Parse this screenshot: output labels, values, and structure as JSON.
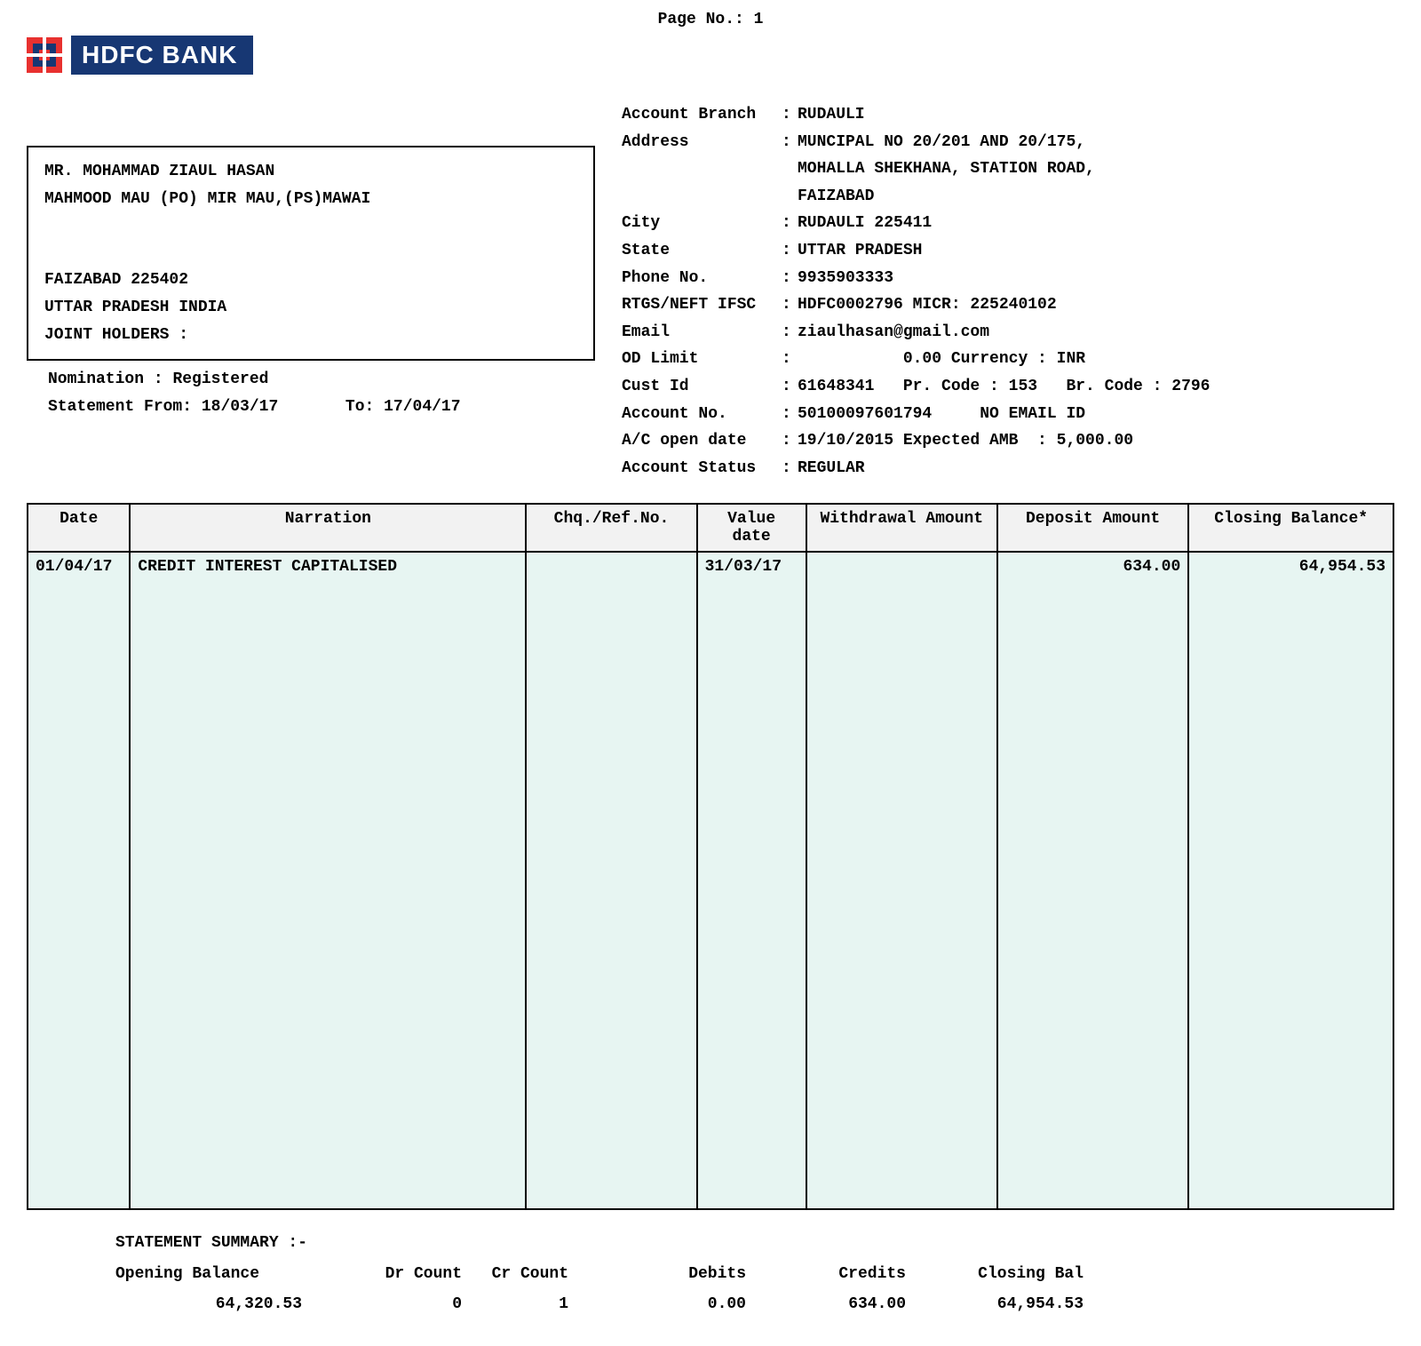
{
  "page_no_label": "Page No.:",
  "page_no": "1",
  "bank_name": "HDFC BANK",
  "logo_colors": {
    "outer": "#e8312f",
    "inner": "#173773",
    "center": "#e8312f",
    "bar_bg": "#173773",
    "bar_text": "#ffffff"
  },
  "customer": {
    "name": "MR.  MOHAMMAD ZIAUL HASAN",
    "addr1": "MAHMOOD MAU (PO) MIR MAU,(PS)MAWAI",
    "addr2": "FAIZABAD 225402",
    "addr3": "UTTAR PRADESH INDIA",
    "joint_label": "JOINT HOLDERS :",
    "nomination_label": "Nomination   :",
    "nomination": "Registered",
    "stmt_from_label": "Statement From:",
    "stmt_from": "18/03/17",
    "stmt_to_label": "To:",
    "stmt_to": "17/04/17"
  },
  "branch": {
    "rows": [
      {
        "label": "Account Branch",
        "value": "RUDAULI"
      },
      {
        "label": "Address",
        "value": "MUNCIPAL NO 20/201 AND 20/175,"
      },
      {
        "label": "",
        "value": "MOHALLA SHEKHANA, STATION ROAD,"
      },
      {
        "label": "",
        "value": "FAIZABAD"
      },
      {
        "label": "City",
        "value": "RUDAULI 225411"
      },
      {
        "label": "State",
        "value": "UTTAR PRADESH"
      },
      {
        "label": "Phone No.",
        "value": "9935903333"
      },
      {
        "label": "RTGS/NEFT IFSC",
        "value": "HDFC0002796 MICR: 225240102"
      },
      {
        "label": "Email",
        "value": "ziaulhasan@gmail.com"
      },
      {
        "label": "OD Limit",
        "value": "           0.00 Currency : INR"
      },
      {
        "label": "Cust Id",
        "value": "61648341   Pr. Code : 153   Br. Code : 2796"
      },
      {
        "label": "Account No.",
        "value": "50100097601794     NO EMAIL ID"
      },
      {
        "label": "A/C open date",
        "value": "19/10/2015 Expected AMB  : 5,000.00"
      },
      {
        "label": "Account Status",
        "value": "REGULAR"
      }
    ]
  },
  "table": {
    "headers": [
      "Date",
      "Narration",
      "Chq./Ref.No.",
      "Value date",
      "Withdrawal Amount",
      "Deposit Amount",
      "Closing Balance*"
    ],
    "row": {
      "date": "01/04/17",
      "narration": "CREDIT INTEREST CAPITALISED",
      "ref": "",
      "value_date": "31/03/17",
      "withdrawal": "",
      "deposit": "634.00",
      "balance": "64,954.53"
    },
    "header_bg": "#f2f2f2",
    "body_bg": "#e7f5f2",
    "border_color": "#000000"
  },
  "summary": {
    "title": "STATEMENT SUMMARY :-",
    "headers": {
      "open": "Opening Balance",
      "dr": "Dr Count",
      "cr": "Cr Count",
      "debits": "Debits",
      "credits": "Credits",
      "closing": "Closing Bal"
    },
    "values": {
      "open": "64,320.53",
      "dr": "0",
      "cr": "1",
      "debits": "0.00",
      "credits": "634.00",
      "closing": "64,954.53"
    }
  }
}
